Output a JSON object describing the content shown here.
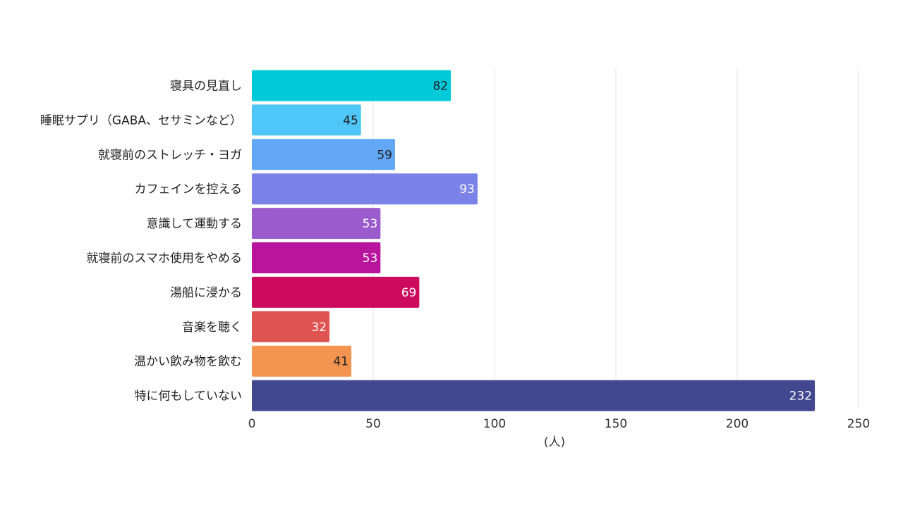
{
  "chart_data": {
    "type": "bar",
    "orientation": "horizontal",
    "categories": [
      "寝具の見直し",
      "睡眠サプリ（GABA、セサミンなど）",
      "就寝前のストレッチ・ヨガ",
      "カフェインを控える",
      "意識して運動する",
      "就寝前のスマホ使用をやめる",
      "湯船に浸かる",
      "音楽を聴く",
      "温かい飲み物を飲む",
      "特に何もしていない"
    ],
    "values": [
      82,
      45,
      59,
      93,
      53,
      53,
      69,
      32,
      41,
      232
    ],
    "colors": [
      "#00c9da",
      "#4ec6f7",
      "#62a7f6",
      "#7b82e8",
      "#9b5bcc",
      "#b9149d",
      "#cc0a5e",
      "#df5350",
      "#f39451",
      "#434790"
    ],
    "label_colors": [
      "#222222",
      "#222222",
      "#222222",
      "#ffffff",
      "#ffffff",
      "#ffffff",
      "#ffffff",
      "#ffffff",
      "#222222",
      "#ffffff"
    ],
    "xlim": [
      0,
      250
    ],
    "xticks": [
      0,
      50,
      100,
      150,
      200,
      250
    ],
    "xlabel": "(人)",
    "grid": true
  }
}
